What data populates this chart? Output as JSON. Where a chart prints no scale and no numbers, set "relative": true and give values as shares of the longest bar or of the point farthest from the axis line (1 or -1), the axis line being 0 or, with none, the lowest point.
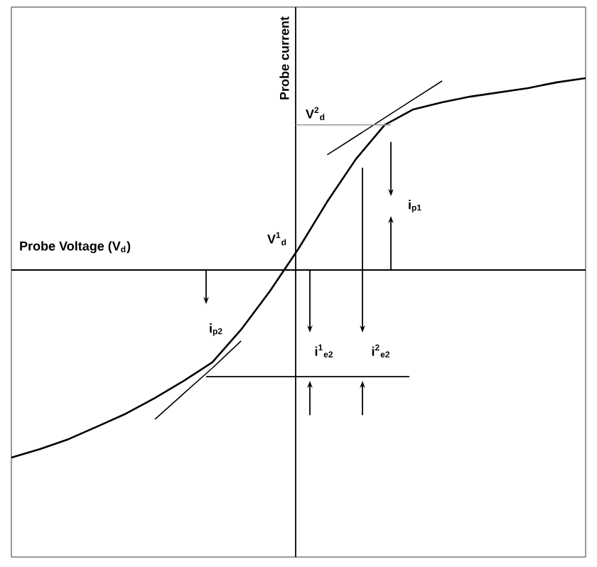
{
  "chart_data": {
    "type": "line",
    "relative": true,
    "xlabel": "Probe Voltage (V$_{d}$)",
    "ylabel": "Probe current",
    "categories": [
      null,
      null,
      null,
      null,
      null,
      null,
      null,
      null,
      null,
      null,
      null,
      null,
      null,
      null,
      null,
      null,
      null,
      null,
      null,
      null,
      null
    ],
    "series": [
      {
        "color": "#000000",
        "values": [
          -0.978,
          -0.933,
          -0.881,
          -0.815,
          -0.748,
          -0.667,
          -0.578,
          -0.481,
          -0.311,
          -0.111,
          0.111,
          0.356,
          0.578,
          0.756,
          0.837,
          0.874,
          0.904,
          0.926,
          0.948,
          0.978,
          1
        ]
      },
      {
        "color": "#000000",
        "values": [
          null,
          null,
          null,
          null,
          null,
          -0.778,
          -0.644,
          -0.511,
          -0.37,
          null,
          null,
          null,
          null,
          null,
          null,
          null,
          null,
          null,
          null,
          null,
          null
        ]
      },
      {
        "color": "#000000",
        "values": [
          null,
          null,
          null,
          null,
          null,
          null,
          null,
          null,
          null,
          null,
          null,
          0.6,
          0.696,
          0.793,
          0.889,
          0.985,
          null,
          null,
          null,
          null,
          null
        ]
      }
    ],
    "ref_lines": [
      {
        "axis": "y",
        "value": -0.556,
        "color": "#000000"
      },
      {
        "axis": "y",
        "value": 0.756,
        "color": "#999999"
      }
    ],
    "annotations": [
      "V$^{1}$$_{d}$",
      "V$^{2}$$_{d}$",
      "i$_{p1}$",
      "i$_{p2}$",
      "i$^{1}$$_{e2}$",
      "i$^{2}$$_{e2}$"
    ]
  }
}
